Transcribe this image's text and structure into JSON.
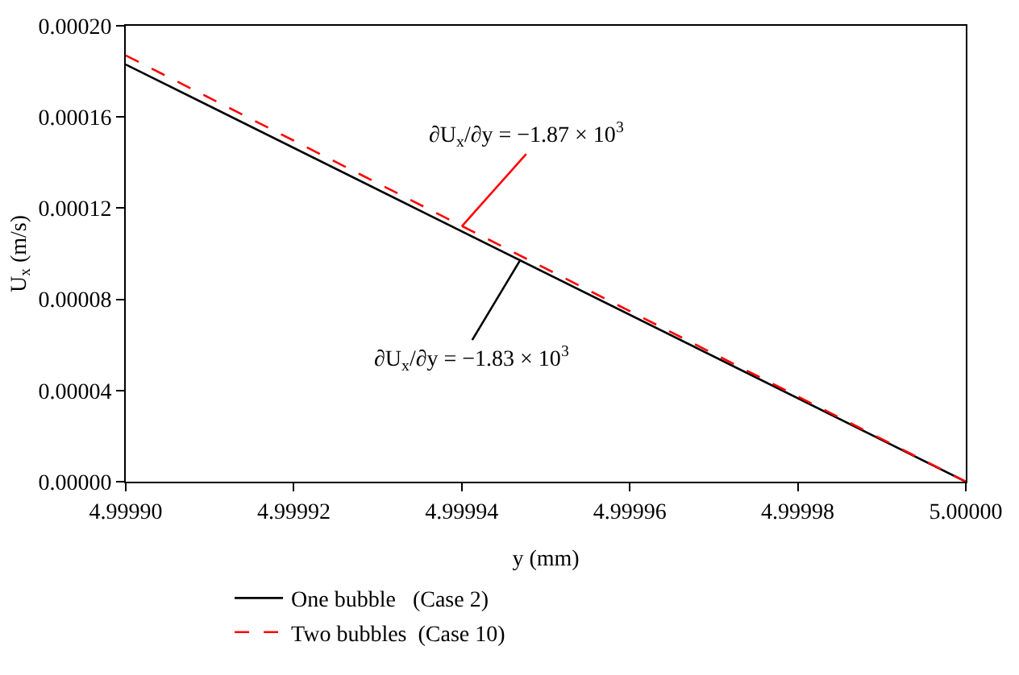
{
  "chart_data": {
    "type": "line",
    "xlabel": "y (mm)",
    "ylabel": "U$_{x}$ (m/s)",
    "xlim": [
      4.9999,
      5.0
    ],
    "xticks": [
      {
        "value": 4.9999,
        "label": "4.99990"
      },
      {
        "value": 4.99992,
        "label": "4.99992"
      },
      {
        "value": 4.99994,
        "label": "4.99994"
      },
      {
        "value": 4.99996,
        "label": "4.99996"
      },
      {
        "value": 4.99998,
        "label": "4.99998"
      },
      {
        "value": 5.0,
        "label": "5.00000"
      }
    ],
    "ylim": [
      0,
      0.0002
    ],
    "yticks": [
      {
        "value": 0,
        "label": "0.00000"
      },
      {
        "value": 4e-05,
        "label": "0.00004"
      },
      {
        "value": 8e-05,
        "label": "0.00008"
      },
      {
        "value": 0.00012,
        "label": "0.00012"
      },
      {
        "value": 0.00016,
        "label": "0.00016"
      },
      {
        "value": 0.0002,
        "label": "0.00020"
      }
    ],
    "x": [
      4.9999,
      5.0
    ],
    "series": [
      {
        "name": "One bubble   (Case 2)",
        "color": "#000000",
        "values": [
          0.000183,
          0
        ],
        "line_style": "solid"
      },
      {
        "name": "Two bubbles  (Case 10)",
        "color": "#ff0000",
        "values": [
          0.000187,
          0
        ],
        "line_style": "dashed"
      }
    ],
    "annotations": [
      {
        "text": "∂U$_{x}$/∂y = −1.83 × 10$^{3}$",
        "x": 4.999947,
        "y": 9.75e-05
      },
      {
        "text": "∂U$_{x}$/∂y = −1.87 × 10$^{3}$",
        "x": 4.99994,
        "y": 0.000112
      }
    ],
    "legend": "bottom"
  }
}
